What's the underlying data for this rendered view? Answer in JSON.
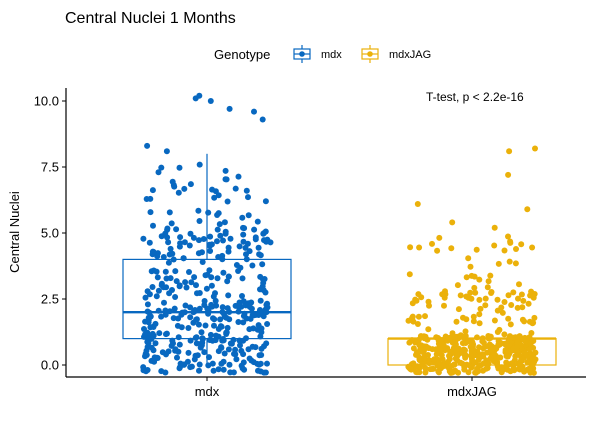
{
  "chart_data": {
    "type": "box",
    "title": "Central Nuclei 1 Months",
    "legend": {
      "title": "Genotype",
      "placement": "top",
      "entries": [
        "mdx",
        "mdxJAG"
      ]
    },
    "xlabel": "",
    "ylabel": "Central Nuclei",
    "categories": [
      "mdx",
      "mdxJAG"
    ],
    "ylim": [
      -0.5,
      10.5
    ],
    "yticks": [
      0,
      2.5,
      5,
      7.5,
      10
    ],
    "ytick_labels": [
      "0.0",
      "2.5",
      "5.0",
      "7.5",
      "10.0"
    ],
    "series": [
      {
        "name": "mdx",
        "color": "#0868C0",
        "box": {
          "whisker_low": 0,
          "q1": 1,
          "median": 2,
          "q3": 4,
          "whisker_high": 8
        },
        "outliers": [
          8.1,
          8.3,
          9.3,
          9.6,
          9.7,
          10.0,
          10.1,
          10.2
        ]
      },
      {
        "name": "mdxJAG",
        "color": "#EBB10A",
        "box": {
          "whisker_low": 0,
          "q1": 0,
          "median": 1,
          "q3": 1,
          "whisker_high": 1
        },
        "outliers": [
          5.2,
          5.4,
          5.9,
          6.1,
          7.2,
          8.1,
          8.2
        ]
      }
    ],
    "annotation": "T-test, p < 2.2e-16",
    "grid": false
  }
}
